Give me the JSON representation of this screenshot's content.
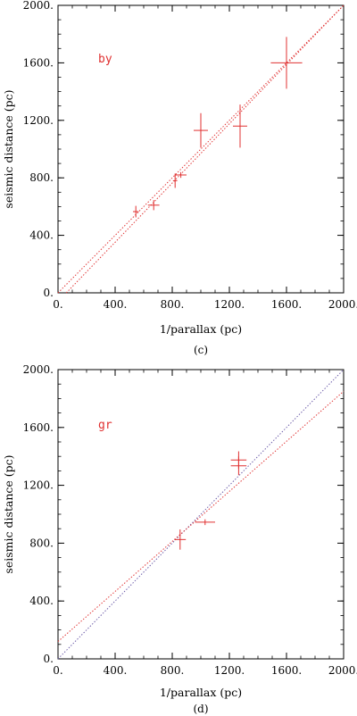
{
  "chart_data": [
    {
      "type": "scatter",
      "panel_caption": "(c)",
      "series_label": "by",
      "xlabel": "1/parallax (pc)",
      "ylabel": "seismic distance (pc)",
      "xlim": [
        0,
        2000
      ],
      "ylim": [
        0,
        2000
      ],
      "xticks": [
        "0.",
        "400.",
        "800.",
        "1200.",
        "1600.",
        "2000."
      ],
      "yticks": [
        "0.",
        "400.",
        "800.",
        "1200.",
        "1600.",
        "2000."
      ],
      "points": [
        {
          "x": 545,
          "y": 565,
          "xerr": 20,
          "yerr": 40
        },
        {
          "x": 670,
          "y": 610,
          "xerr": 40,
          "yerr": 35
        },
        {
          "x": 820,
          "y": 780,
          "xerr": 15,
          "yerr": 50
        },
        {
          "x": 860,
          "y": 820,
          "xerr": 40,
          "yerr": 20
        },
        {
          "x": 1000,
          "y": 1130,
          "xerr": 50,
          "yerr": 120
        },
        {
          "x": 1275,
          "y": 1160,
          "xerr": 50,
          "yerr": 150
        },
        {
          "x": 1600,
          "y": 1600,
          "xerr": 110,
          "yerr": 180
        }
      ],
      "lines": [
        {
          "style": "dotted",
          "color": "#e03030",
          "points": [
            [
              0,
              0
            ],
            [
              2000,
              2000
            ]
          ]
        },
        {
          "style": "dotted",
          "color": "#e03030",
          "points": [
            [
              0,
              -60
            ],
            [
              2000,
              2000
            ]
          ]
        }
      ],
      "colors": {
        "marker": "#e03030",
        "axis": "#000000"
      }
    },
    {
      "type": "scatter",
      "panel_caption": "(d)",
      "series_label": "gr",
      "xlabel": "1/parallax (pc)",
      "ylabel": "seismic distance (pc)",
      "xlim": [
        0,
        2000
      ],
      "ylim": [
        0,
        2000
      ],
      "xticks": [
        "0.",
        "400.",
        "800.",
        "1200.",
        "1600.",
        "2000."
      ],
      "yticks": [
        "0.",
        "400.",
        "800.",
        "1200.",
        "1600.",
        "2000."
      ],
      "points": [
        {
          "x": 855,
          "y": 825,
          "xerr": 40,
          "yerr": 70
        },
        {
          "x": 1030,
          "y": 945,
          "xerr": 70,
          "yerr": 20
        },
        {
          "x": 1265,
          "y": 1335,
          "xerr": 55,
          "yerr": 65
        },
        {
          "x": 1265,
          "y": 1375,
          "xerr": 55,
          "yerr": 60
        }
      ],
      "lines": [
        {
          "style": "dotted",
          "color": "#6a5aa8",
          "points": [
            [
              0,
              0
            ],
            [
              2000,
              2000
            ]
          ]
        },
        {
          "style": "dotted",
          "color": "#e03030",
          "points": [
            [
              0,
              120
            ],
            [
              2000,
              1850
            ]
          ]
        }
      ],
      "colors": {
        "marker": "#e03030",
        "axis": "#000000"
      }
    }
  ]
}
